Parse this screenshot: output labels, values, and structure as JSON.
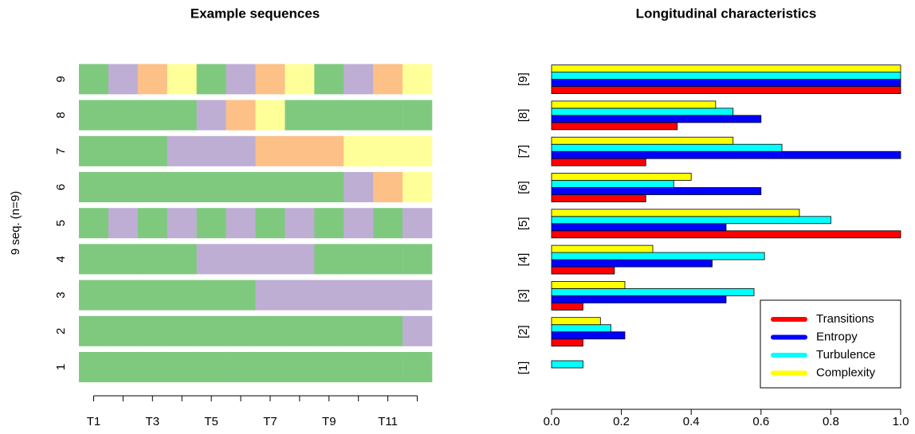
{
  "chart_data": [
    {
      "type": "sequence-index",
      "title": "Example sequences",
      "y_label": "9 seq. (n=9)",
      "categories": [
        "T1",
        null,
        "T3",
        null,
        "T5",
        null,
        "T7",
        null,
        "T9",
        null,
        "T11",
        null
      ],
      "sequences": [
        {
          "name": "1",
          "states": [
            "#7fc97f",
            "#7fc97f",
            "#7fc97f",
            "#7fc97f",
            "#7fc97f",
            "#7fc97f",
            "#7fc97f",
            "#7fc97f",
            "#7fc97f",
            "#7fc97f",
            "#7fc97f",
            "#7fc97f"
          ]
        },
        {
          "name": "2",
          "states": [
            "#7fc97f",
            "#7fc97f",
            "#7fc97f",
            "#7fc97f",
            "#7fc97f",
            "#7fc97f",
            "#7fc97f",
            "#7fc97f",
            "#7fc97f",
            "#7fc97f",
            "#7fc97f",
            "#beaed4"
          ]
        },
        {
          "name": "3",
          "states": [
            "#7fc97f",
            "#7fc97f",
            "#7fc97f",
            "#7fc97f",
            "#7fc97f",
            "#7fc97f",
            "#beaed4",
            "#beaed4",
            "#beaed4",
            "#beaed4",
            "#beaed4",
            "#beaed4"
          ]
        },
        {
          "name": "4",
          "states": [
            "#7fc97f",
            "#7fc97f",
            "#7fc97f",
            "#7fc97f",
            "#beaed4",
            "#beaed4",
            "#beaed4",
            "#beaed4",
            "#7fc97f",
            "#7fc97f",
            "#7fc97f",
            "#7fc97f"
          ]
        },
        {
          "name": "5",
          "states": [
            "#7fc97f",
            "#beaed4",
            "#7fc97f",
            "#beaed4",
            "#7fc97f",
            "#beaed4",
            "#7fc97f",
            "#beaed4",
            "#7fc97f",
            "#beaed4",
            "#7fc97f",
            "#beaed4"
          ]
        },
        {
          "name": "6",
          "states": [
            "#7fc97f",
            "#7fc97f",
            "#7fc97f",
            "#7fc97f",
            "#7fc97f",
            "#7fc97f",
            "#7fc97f",
            "#7fc97f",
            "#7fc97f",
            "#beaed4",
            "#fdc086",
            "#ffff99"
          ]
        },
        {
          "name": "7",
          "states": [
            "#7fc97f",
            "#7fc97f",
            "#7fc97f",
            "#beaed4",
            "#beaed4",
            "#beaed4",
            "#fdc086",
            "#fdc086",
            "#fdc086",
            "#ffff99",
            "#ffff99",
            "#ffff99"
          ]
        },
        {
          "name": "8",
          "states": [
            "#7fc97f",
            "#7fc97f",
            "#7fc97f",
            "#7fc97f",
            "#beaed4",
            "#fdc086",
            "#ffff99",
            "#7fc97f",
            "#7fc97f",
            "#7fc97f",
            "#7fc97f",
            "#7fc97f"
          ]
        },
        {
          "name": "9",
          "states": [
            "#7fc97f",
            "#beaed4",
            "#fdc086",
            "#ffff99",
            "#7fc97f",
            "#beaed4",
            "#fdc086",
            "#ffff99",
            "#7fc97f",
            "#beaed4",
            "#fdc086",
            "#ffff99"
          ]
        }
      ]
    },
    {
      "type": "bar",
      "orientation": "horizontal",
      "title": "Longitudinal characteristics",
      "categories": [
        "[1]",
        "[2]",
        "[3]",
        "[4]",
        "[5]",
        "[6]",
        "[7]",
        "[8]",
        "[9]"
      ],
      "series": [
        {
          "name": "Transitions",
          "color": "#ff0000",
          "values": [
            0,
            0.09,
            0.09,
            0.18,
            1.0,
            0.27,
            0.27,
            0.36,
            1.0
          ]
        },
        {
          "name": "Entropy",
          "color": "#0000ff",
          "values": [
            0,
            0.21,
            0.5,
            0.46,
            0.5,
            0.6,
            1.0,
            0.6,
            1.0
          ]
        },
        {
          "name": "Turbulence",
          "color": "#00ffff",
          "values": [
            0.09,
            0.17,
            0.58,
            0.61,
            0.8,
            0.35,
            0.66,
            0.52,
            1.0
          ]
        },
        {
          "name": "Complexity",
          "color": "#ffff00",
          "values": [
            0,
            0.14,
            0.21,
            0.29,
            0.71,
            0.4,
            0.52,
            0.47,
            1.0
          ]
        }
      ],
      "xlim": [
        0,
        1
      ],
      "xticks": [
        {
          "value": 0,
          "label": "0.0"
        },
        {
          "value": 0.2,
          "label": "0.2"
        },
        {
          "value": 0.4,
          "label": "0.4"
        },
        {
          "value": 0.6,
          "label": "0.6"
        },
        {
          "value": 0.8,
          "label": "0.8"
        },
        {
          "value": 1,
          "label": "1.0"
        }
      ],
      "legend": "bottom-right"
    }
  ]
}
